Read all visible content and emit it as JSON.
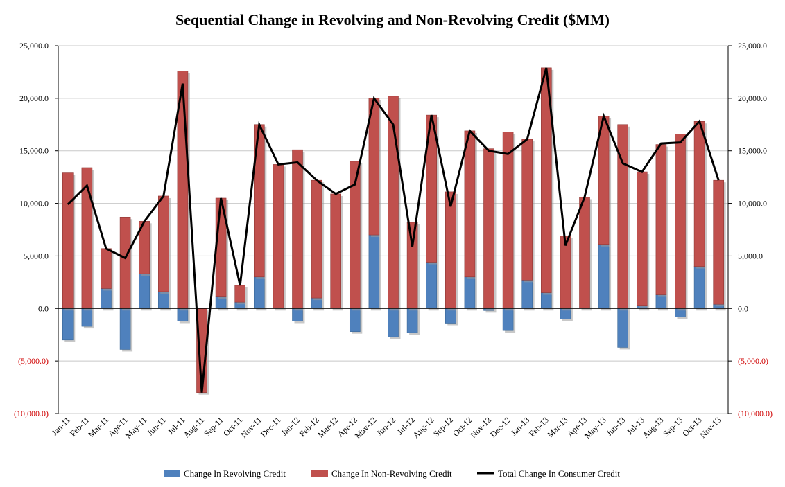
{
  "chart_data": {
    "type": "bar",
    "title": "Sequential Change in Revolving and Non-Revolving Credit ($MM)",
    "stacked": true,
    "categories": [
      "Jan-11",
      "Feb-11",
      "Mar-11",
      "Apr-11",
      "May-11",
      "Jun-11",
      "Jul-11",
      "Aug-11",
      "Sep-11",
      "Oct-11",
      "Nov-11",
      "Dec-11",
      "Jan-12",
      "Feb-12",
      "Mar-12",
      "Apr-12",
      "May-12",
      "Jun-12",
      "Jul-12",
      "Aug-12",
      "Sep-12",
      "Oct-12",
      "Nov-12",
      "Dec-12",
      "Jan-13",
      "Feb-13",
      "Mar-13",
      "Apr-13",
      "May-13",
      "Jun-13",
      "Jul-13",
      "Aug-13",
      "Sep-13",
      "Oct-13",
      "Nov-13"
    ],
    "series": [
      {
        "name": "Change In Revolving Credit",
        "type": "bar",
        "color": "#4f81bd",
        "values": [
          -3000,
          -1700,
          1900,
          -3900,
          3300,
          1600,
          -1200,
          0,
          1100,
          600,
          3000,
          0,
          -1200,
          1000,
          0,
          -2200,
          7000,
          -2700,
          -2300,
          4400,
          -1400,
          3000,
          -200,
          -2100,
          2700,
          1500,
          -1000,
          0,
          6100,
          -3700,
          300,
          1300,
          -800,
          4000,
          400
        ]
      },
      {
        "name": "Change In Non-Revolving Credit",
        "type": "bar",
        "color": "#c0504d",
        "values": [
          12900,
          13400,
          3800,
          8700,
          5000,
          9100,
          22600,
          -8000,
          9400,
          1600,
          14500,
          13700,
          15100,
          11200,
          10900,
          14000,
          13000,
          20200,
          8200,
          14000,
          11100,
          13900,
          15200,
          16800,
          13400,
          21400,
          6900,
          10600,
          12200,
          17500,
          12700,
          14300,
          16600,
          13800,
          11800
        ]
      },
      {
        "name": "Total Change In Consumer Credit",
        "type": "line",
        "color": "#000000",
        "values": [
          9900,
          11700,
          5700,
          4800,
          8300,
          10700,
          21400,
          -8000,
          10500,
          2200,
          17500,
          13700,
          13900,
          12200,
          10900,
          11800,
          20000,
          17500,
          5900,
          18400,
          9700,
          16900,
          15000,
          14700,
          16100,
          22900,
          6000,
          10600,
          18300,
          13800,
          13000,
          15700,
          15800,
          17800,
          12200
        ]
      }
    ],
    "ylim": [
      -10000,
      25000
    ],
    "yticks": [
      25000,
      20000,
      15000,
      10000,
      5000,
      0,
      -5000,
      -10000
    ],
    "ytick_labels": [
      "25,000.0",
      "20,000.0",
      "15,000.0",
      "10,000.0",
      "5,000.0",
      "0.0",
      "(5,000.0)",
      "(10,000.0)"
    ],
    "negative_tick_color": "#d00000",
    "axes": "left and right (mirrored)",
    "grid": true,
    "legend": "bottom"
  }
}
